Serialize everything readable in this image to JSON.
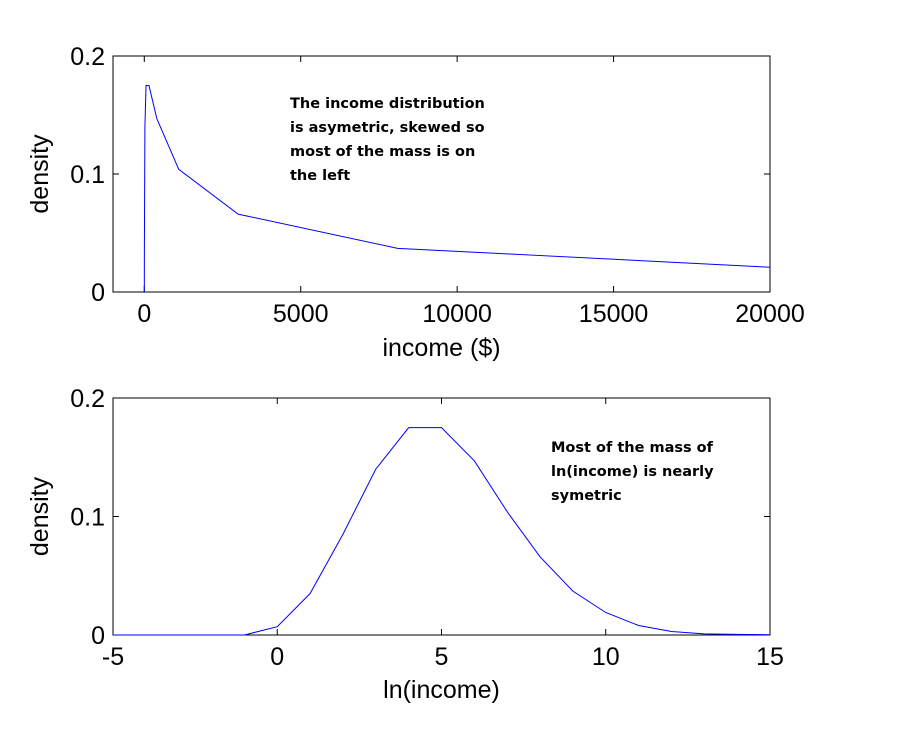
{
  "chart_data": [
    {
      "type": "line",
      "xlabel": "income ($)",
      "ylabel": "density",
      "xlim": [
        -1000,
        20000
      ],
      "ylim": [
        0,
        0.2
      ],
      "xticks": [
        0,
        5000,
        10000,
        15000,
        20000
      ],
      "xtick_labels": [
        "0",
        "5000",
        "10000",
        "15000",
        "20000"
      ],
      "yticks": [
        0,
        0.1,
        0.2
      ],
      "ytick_labels": [
        "0",
        "0.1",
        "0.2"
      ],
      "series": [
        {
          "color": "#0000ff",
          "x": [
            0,
            1,
            3,
            20,
            55,
            150,
            400,
            1100,
            3000,
            8100,
            20000
          ],
          "y": [
            0,
            0.007,
            0.035,
            0.14,
            0.175,
            0.175,
            0.147,
            0.104,
            0.066,
            0.037,
            0.021
          ]
        }
      ],
      "annotation": [
        "The income distribution",
        "is asymetric, skewed so",
        "most of the mass is on",
        "the left"
      ]
    },
    {
      "type": "line",
      "xlabel": "ln(income)",
      "ylabel": "density",
      "xlim": [
        -5,
        15
      ],
      "ylim": [
        0,
        0.2
      ],
      "xticks": [
        -5,
        0,
        5,
        10,
        15
      ],
      "xtick_labels": [
        "-5",
        "0",
        "5",
        "10",
        "15"
      ],
      "yticks": [
        0,
        0.1,
        0.2
      ],
      "ytick_labels": [
        "0",
        "0.1",
        "0.2"
      ],
      "series": [
        {
          "color": "#0000ff",
          "x": [
            -5,
            -4,
            -3,
            -2,
            -1,
            0,
            1,
            2,
            3,
            4,
            5,
            6,
            7,
            8,
            9,
            10,
            11,
            12,
            13,
            14,
            15
          ],
          "y": [
            0,
            0,
            0,
            0,
            0,
            0.007,
            0.035,
            0.085,
            0.14,
            0.175,
            0.175,
            0.147,
            0.104,
            0.066,
            0.037,
            0.019,
            0.008,
            0.003,
            0.001,
            0.0005,
            0.0002
          ]
        }
      ],
      "annotation": [
        "Most of the mass of",
        "ln(income) is nearly",
        "symetric"
      ]
    }
  ]
}
